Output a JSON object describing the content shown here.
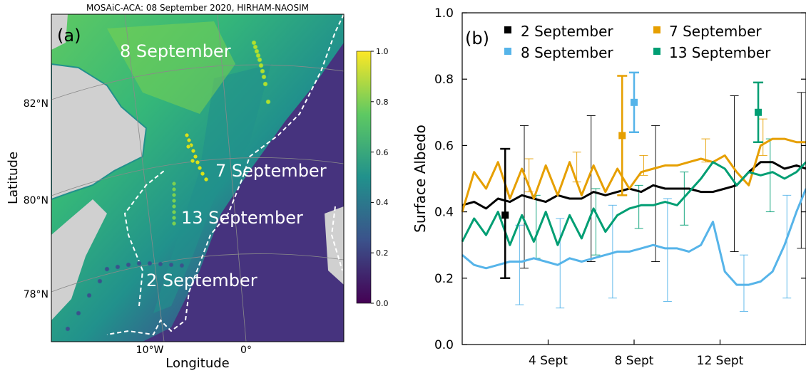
{
  "panel_a": {
    "title": "MOSAiC-ACA: 08 September 2020, HIRHAM-NAOSIM",
    "panel_label": "(a)",
    "xlabel": "Longitude",
    "ylabel": "Latitude",
    "lat_ticks": [
      "82°N",
      "80°N",
      "78°N"
    ],
    "lon_ticks": [
      "10°W",
      "0°"
    ],
    "colorbar_ticks": [
      "1.0",
      "0.8",
      "0.6",
      "0.4",
      "0.2",
      "0.0"
    ],
    "colormap": [
      "#440154",
      "#3b528b",
      "#21918c",
      "#5ec962",
      "#fde725"
    ],
    "annotations": [
      "8 September",
      "7 September",
      "13 September",
      "2 September"
    ]
  },
  "chart_data": {
    "type": "line",
    "panel_label": "(b)",
    "ylabel": "Surface Albedo",
    "xlabel": "",
    "ylim": [
      0.0,
      1.0
    ],
    "xlim": [
      0,
      14.4
    ],
    "y_ticks": [
      "0.0",
      "0.2",
      "0.4",
      "0.6",
      "0.8",
      "1.0"
    ],
    "x_ticks": [
      {
        "x": 3.6,
        "label": "4 Sept"
      },
      {
        "x": 7.2,
        "label": "8 Sept"
      },
      {
        "x": 10.8,
        "label": "12 Sept"
      }
    ],
    "series": [
      {
        "name": "2 September",
        "color": "#000000",
        "x": [
          0,
          0.5,
          1,
          1.5,
          2,
          2.5,
          3,
          3.5,
          4,
          4.5,
          5,
          5.5,
          6,
          6.5,
          7,
          7.5,
          8,
          8.5,
          9,
          9.5,
          10,
          10.5,
          11,
          11.5,
          12,
          12.5,
          13,
          13.5,
          14,
          14.4
        ],
        "y": [
          0.42,
          0.43,
          0.41,
          0.44,
          0.43,
          0.45,
          0.44,
          0.43,
          0.45,
          0.44,
          0.44,
          0.46,
          0.45,
          0.46,
          0.47,
          0.46,
          0.48,
          0.47,
          0.47,
          0.47,
          0.46,
          0.46,
          0.47,
          0.48,
          0.52,
          0.55,
          0.55,
          0.53,
          0.54,
          0.53
        ],
        "markers": [
          {
            "x": 1.8,
            "y": 0.39,
            "lo": 0.2,
            "hi": 0.59
          }
        ],
        "err_x": [
          2.6,
          5.4,
          8.1,
          11.4,
          14.2
        ],
        "err_lo": [
          0.23,
          0.25,
          0.25,
          0.28,
          0.29
        ],
        "err_hi": [
          0.66,
          0.69,
          0.66,
          0.75,
          0.76
        ]
      },
      {
        "name": "7 September",
        "color": "#e69f00",
        "x": [
          0,
          0.5,
          1,
          1.5,
          2,
          2.5,
          3,
          3.5,
          4,
          4.5,
          5,
          5.5,
          6,
          6.5,
          7,
          7.5,
          8,
          8.5,
          9,
          9.5,
          10,
          10.5,
          11,
          11.5,
          12,
          12.5,
          13,
          13.5,
          14,
          14.4
        ],
        "y": [
          0.4,
          0.52,
          0.47,
          0.55,
          0.44,
          0.53,
          0.44,
          0.54,
          0.45,
          0.55,
          0.45,
          0.54,
          0.46,
          0.53,
          0.47,
          0.52,
          0.53,
          0.54,
          0.54,
          0.55,
          0.56,
          0.55,
          0.57,
          0.52,
          0.48,
          0.6,
          0.62,
          0.62,
          0.61,
          0.61
        ],
        "markers": [
          {
            "x": 6.7,
            "y": 0.63,
            "lo": 0.45,
            "hi": 0.81
          }
        ],
        "err_x": [
          2.8,
          4.8,
          7.6,
          10.2,
          12.6
        ],
        "err_lo": [
          0.46,
          0.49,
          0.51,
          0.55,
          0.57
        ],
        "err_hi": [
          0.56,
          0.58,
          0.57,
          0.62,
          0.68
        ]
      },
      {
        "name": "8 September",
        "color": "#56b4e9",
        "x": [
          0,
          0.5,
          1,
          1.5,
          2,
          2.5,
          3,
          3.5,
          4,
          4.5,
          5,
          5.5,
          6,
          6.5,
          7,
          7.5,
          8,
          8.5,
          9,
          9.5,
          10,
          10.5,
          11,
          11.5,
          12,
          12.5,
          13,
          13.5,
          14,
          14.4
        ],
        "y": [
          0.27,
          0.24,
          0.23,
          0.24,
          0.25,
          0.25,
          0.26,
          0.25,
          0.24,
          0.26,
          0.25,
          0.26,
          0.27,
          0.28,
          0.28,
          0.29,
          0.3,
          0.29,
          0.29,
          0.28,
          0.3,
          0.37,
          0.22,
          0.18,
          0.18,
          0.19,
          0.22,
          0.3,
          0.4,
          0.47
        ],
        "markers": [
          {
            "x": 7.2,
            "y": 0.73,
            "lo": 0.64,
            "hi": 0.82
          }
        ],
        "err_x": [
          2.4,
          4.1,
          6.3,
          8.6,
          11.8,
          13.6
        ],
        "err_lo": [
          0.12,
          0.11,
          0.14,
          0.13,
          0.1,
          0.14
        ],
        "err_hi": [
          0.36,
          0.38,
          0.42,
          0.44,
          0.27,
          0.45
        ]
      },
      {
        "name": "13 September",
        "color": "#009e73",
        "x": [
          0,
          0.5,
          1,
          1.5,
          2,
          2.5,
          3,
          3.5,
          4,
          4.5,
          5,
          5.5,
          6,
          6.5,
          7,
          7.5,
          8,
          8.5,
          9,
          9.5,
          10,
          10.5,
          11,
          11.5,
          12,
          12.5,
          13,
          13.5,
          14,
          14.4
        ],
        "y": [
          0.31,
          0.38,
          0.33,
          0.4,
          0.3,
          0.39,
          0.31,
          0.4,
          0.3,
          0.39,
          0.32,
          0.41,
          0.34,
          0.39,
          0.41,
          0.42,
          0.42,
          0.43,
          0.42,
          0.46,
          0.5,
          0.55,
          0.53,
          0.48,
          0.52,
          0.51,
          0.52,
          0.5,
          0.52,
          0.55
        ],
        "markers": [
          {
            "x": 12.4,
            "y": 0.7,
            "lo": 0.61,
            "hi": 0.79
          }
        ],
        "err_x": [
          3.1,
          5.6,
          7.4,
          9.3,
          12.9
        ],
        "err_lo": [
          0.26,
          0.27,
          0.35,
          0.36,
          0.4
        ],
        "err_hi": [
          0.45,
          0.47,
          0.48,
          0.52,
          0.62
        ]
      }
    ]
  }
}
